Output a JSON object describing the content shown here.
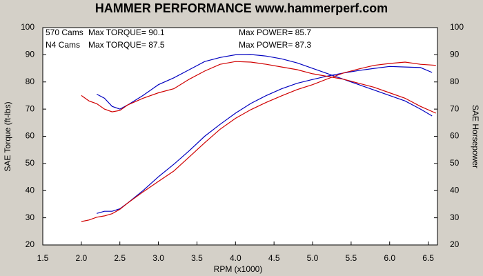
{
  "chart_data": {
    "type": "line",
    "title": "HAMMER PERFORMANCE www.hammerperf.com",
    "x_label": "RPM (x1000)",
    "y_label": "SAE Torque (ft-lbs)",
    "y2_label": "SAE Horsepower",
    "xlim": [
      1.5,
      6.62
    ],
    "xticks": [
      1.5,
      {
        "value": 2,
        "label": "2.0"
      },
      2.5,
      {
        "value": 3,
        "label": "3.0"
      },
      3.5,
      {
        "value": 4,
        "label": "4.0"
      },
      4.5,
      {
        "value": 5,
        "label": "5.0"
      },
      5.5,
      {
        "value": 6,
        "label": "6.0"
      },
      6.5
    ],
    "ylim": [
      20,
      100
    ],
    "yticks": [
      20,
      30,
      40,
      50,
      60,
      70,
      80,
      90,
      100
    ],
    "y2lim": [
      20,
      100
    ],
    "y2ticks": [
      20,
      30,
      40,
      50,
      60,
      70,
      80,
      90,
      100
    ],
    "grid": false,
    "series": [
      {
        "name": "570 Cams",
        "color": "#0000c0",
        "max_torque": "Max TORQUE= 90.1",
        "max_power": "Max POWER= 85.7",
        "x": [
          2.2,
          2.3,
          2.4,
          2.5,
          2.6,
          2.8,
          3.0,
          3.2,
          3.4,
          3.6,
          3.8,
          4.0,
          4.2,
          4.4,
          4.6,
          4.8,
          5.0,
          5.2,
          5.4,
          5.6,
          5.8,
          6.0,
          6.2,
          6.4,
          6.55
        ],
        "torque": [
          75.5,
          74,
          71,
          70,
          71.5,
          75,
          79,
          81.5,
          84.5,
          87.5,
          89,
          90,
          90.1,
          89.5,
          88.5,
          87,
          85,
          83,
          81,
          79,
          77,
          75,
          73,
          70,
          67.5
        ],
        "power": [
          31.6,
          32.4,
          32.4,
          33.3,
          35.4,
          40.0,
          45.1,
          49.7,
          54.7,
          60.0,
          64.4,
          68.5,
          72.1,
          75.0,
          77.5,
          79.5,
          80.9,
          82.2,
          83.3,
          84.2,
          85.0,
          85.7,
          85.5,
          85.3,
          83.5
        ]
      },
      {
        "name": "N4 Cams",
        "color": "#d00000",
        "max_torque": "Max TORQUE= 87.5",
        "max_power": "Max POWER= 87.3",
        "x": [
          2.0,
          2.1,
          2.2,
          2.3,
          2.4,
          2.5,
          2.6,
          2.8,
          3.0,
          3.2,
          3.4,
          3.6,
          3.8,
          4.0,
          4.2,
          4.4,
          4.6,
          4.8,
          5.0,
          5.2,
          5.4,
          5.6,
          5.8,
          6.0,
          6.2,
          6.4,
          6.6
        ],
        "torque": [
          75,
          73,
          72,
          70,
          69,
          69.5,
          71.5,
          74,
          76,
          77.5,
          81,
          84,
          86.5,
          87.5,
          87.3,
          86.5,
          85.5,
          84.5,
          83,
          82,
          81,
          79.5,
          78,
          76,
          74,
          71,
          68.5
        ],
        "power": [
          28.6,
          29.2,
          30.2,
          30.7,
          31.5,
          33.1,
          35.4,
          39.5,
          43.4,
          47.2,
          52.4,
          57.6,
          62.6,
          66.6,
          69.8,
          72.5,
          74.9,
          77.2,
          79.0,
          81.2,
          83.3,
          84.8,
          86.1,
          86.8,
          87.3,
          86.5,
          86.1
        ]
      }
    ]
  }
}
